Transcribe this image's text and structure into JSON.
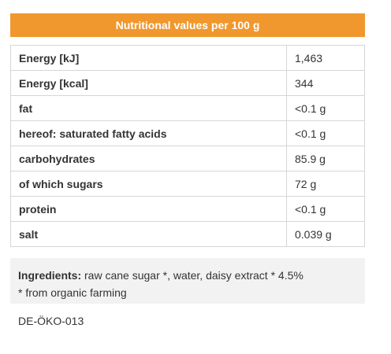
{
  "header": {
    "title": "Nutritional values per 100 g"
  },
  "table": {
    "rows": [
      [
        "Energy [kJ]",
        "1,463"
      ],
      [
        "Energy [kcal]",
        "344"
      ],
      [
        "fat",
        "<0.1 g"
      ],
      [
        "hereof: saturated fatty acids",
        "<0.1 g"
      ],
      [
        "carbohydrates",
        "85.9 g"
      ],
      [
        "of which sugars",
        "72 g"
      ],
      [
        "protein",
        "<0.1 g"
      ],
      [
        "salt",
        "0.039 g"
      ]
    ]
  },
  "ingredients": {
    "label": "Ingredients:",
    "text": "raw cane sugar *, water, daisy extract * 4.5%",
    "note": "* from organic farming"
  },
  "certification": "DE-ÖKO-013"
}
